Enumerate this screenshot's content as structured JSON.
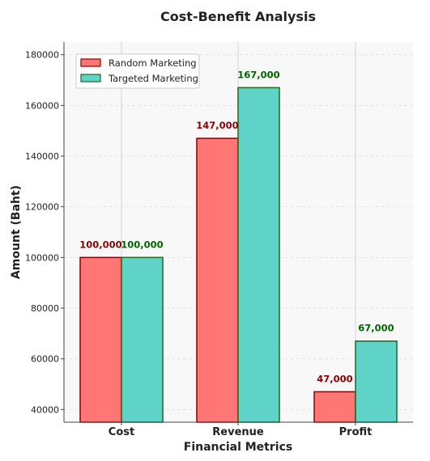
{
  "chart_data": {
    "type": "bar",
    "title": "Cost-Benefit Analysis",
    "xlabel": "Financial Metrics",
    "ylabel": "Amount (Baht)",
    "categories": [
      "Cost",
      "Revenue",
      "Profit"
    ],
    "ylim": [
      35000,
      185000
    ],
    "yticks": [
      40000,
      60000,
      80000,
      100000,
      120000,
      140000,
      160000,
      180000
    ],
    "grid": true,
    "legend_position": "top-left",
    "series": [
      {
        "name": "Random Marketing",
        "values": [
          100000,
          147000,
          47000
        ],
        "labels": [
          "100,000",
          "147,000",
          "47,000"
        ],
        "color": "#ff7675",
        "edge_color": "#8b0000",
        "label_color": "#8b0000"
      },
      {
        "name": "Targeted Marketing",
        "values": [
          100000,
          167000,
          67000
        ],
        "labels": [
          "100,000",
          "167,000",
          "67,000"
        ],
        "color": "#5fd3c8",
        "edge_color": "#1e6b1e",
        "label_color": "#006400"
      }
    ]
  }
}
